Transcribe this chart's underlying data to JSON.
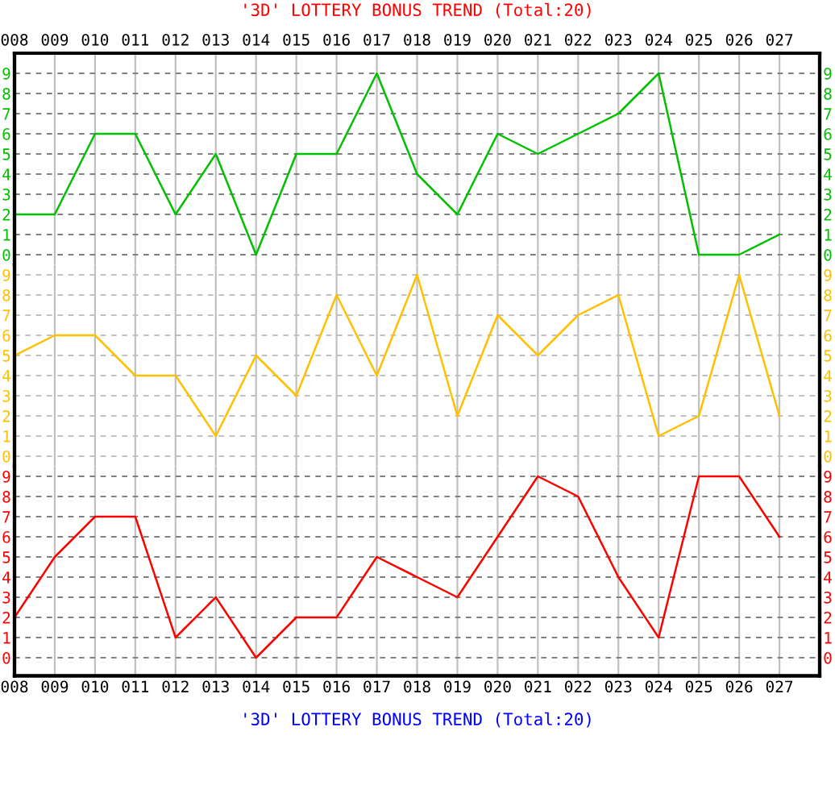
{
  "chart_data": [
    {
      "type": "line",
      "title": "'3D' LOTTERY BONUS TREND (Total:20)",
      "categories": [
        "008",
        "009",
        "010",
        "011",
        "012",
        "013",
        "014",
        "015",
        "016",
        "017",
        "018",
        "019",
        "020",
        "021",
        "022",
        "023",
        "024",
        "025",
        "026",
        "027"
      ],
      "series": [
        {
          "color": "#00c000",
          "values": [
            2,
            2,
            6,
            6,
            2,
            5,
            0,
            5,
            5,
            9,
            4,
            2,
            6,
            5,
            6,
            7,
            9,
            0,
            0,
            1
          ]
        }
      ],
      "ylim": [
        -0.5,
        10
      ],
      "yticks": [
        0,
        1,
        2,
        3,
        4,
        5,
        6,
        7,
        8,
        9
      ],
      "y2lim": [
        -0.5,
        10
      ],
      "y2ticks": [
        0,
        1,
        2,
        3,
        4,
        5,
        6,
        7,
        8,
        9
      ],
      "grid": true
    },
    {
      "type": "line",
      "categories": [
        "008",
        "009",
        "010",
        "011",
        "012",
        "013",
        "014",
        "015",
        "016",
        "017",
        "018",
        "019",
        "020",
        "021",
        "022",
        "023",
        "024",
        "025",
        "026",
        "027"
      ],
      "series": [
        {
          "color": "#ffc000",
          "values": [
            5,
            6,
            6,
            4,
            4,
            1,
            5,
            3,
            8,
            4,
            9,
            2,
            7,
            5,
            7,
            8,
            1,
            2,
            9,
            2
          ]
        }
      ],
      "ylim": [
        -0.5,
        9.5
      ],
      "yticks": [
        0,
        1,
        2,
        3,
        4,
        5,
        6,
        7,
        8,
        9
      ],
      "y2lim": [
        -0.5,
        9.5
      ],
      "y2ticks": [
        0,
        1,
        2,
        3,
        4,
        5,
        6,
        7,
        8,
        9
      ],
      "grid": true,
      "tick_labels": "y"
    },
    {
      "type": "line",
      "categories": [
        "008",
        "009",
        "010",
        "011",
        "012",
        "013",
        "014",
        "015",
        "016",
        "017",
        "018",
        "019",
        "020",
        "021",
        "022",
        "023",
        "024",
        "025",
        "026",
        "027"
      ],
      "series": [
        {
          "color": "#ff0000",
          "values": [
            2,
            5,
            7,
            7,
            1,
            3,
            0,
            2,
            2,
            5,
            4,
            3,
            6,
            9,
            8,
            4,
            1,
            9,
            9,
            6
          ]
        }
      ],
      "ylim": [
        -0.9,
        9.5
      ],
      "yticks": [
        0,
        1,
        2,
        3,
        4,
        5,
        6,
        7,
        8,
        9
      ],
      "y2lim": [
        -0.9,
        9.5
      ],
      "y2ticks": [
        0,
        1,
        2,
        3,
        4,
        5,
        6,
        7,
        8,
        9
      ],
      "grid": true,
      "annotations": [
        "'3D' LOTTERY BONUS TREND (Total:20)"
      ]
    }
  ]
}
